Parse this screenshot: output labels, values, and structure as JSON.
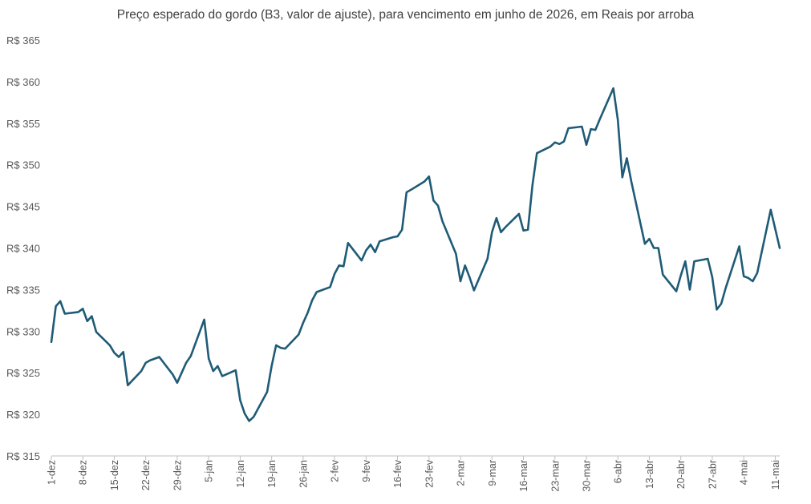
{
  "chart_data": {
    "type": "line",
    "title": "Preço esperado do gordo (B3, valor de ajuste), para vencimento em junho de 2026, em Reais por arroba",
    "xlabel": "",
    "ylabel": "",
    "ylim": [
      315,
      365
    ],
    "y_ticks": [
      "R$ 315",
      "R$ 320",
      "R$ 325",
      "R$ 330",
      "R$ 335",
      "R$ 340",
      "R$ 345",
      "R$ 350",
      "R$ 355",
      "R$ 360",
      "R$ 365"
    ],
    "x_ticks": [
      "1-dez",
      "8-dez",
      "15-dez",
      "22-dez",
      "29-dez",
      "5-jan",
      "12-jan",
      "19-jan",
      "26-jan",
      "2-fev",
      "9-fev",
      "16-fev",
      "23-fev",
      "2-mar",
      "9-mar",
      "16-mar",
      "23-mar",
      "30-mar",
      "6-abr",
      "13-abr",
      "20-abr",
      "27-abr",
      "4-mai",
      "11-mai"
    ],
    "grid": false,
    "legend": "none",
    "line_color": "#1f5b76",
    "series": [
      {
        "x": [
          0,
          1,
          2,
          3,
          6,
          7,
          8,
          9,
          10,
          13,
          14,
          15,
          16,
          17,
          20,
          21,
          22,
          23,
          24,
          27,
          28,
          29,
          30,
          31,
          34,
          35,
          36,
          37,
          38,
          41,
          42,
          43,
          44,
          45,
          48,
          49,
          50,
          51,
          52,
          55,
          56,
          57,
          58,
          59,
          62,
          63,
          64,
          65,
          66,
          69,
          70,
          71,
          72,
          73,
          76,
          77,
          78,
          79,
          80,
          83,
          84,
          85,
          86,
          87,
          90,
          91,
          92,
          93,
          94,
          97,
          98,
          99,
          100,
          101,
          104,
          105,
          106,
          107,
          108,
          111,
          112,
          113,
          114,
          115,
          118,
          119,
          120,
          121,
          122,
          125,
          126,
          127,
          128,
          129,
          132,
          133,
          134,
          135,
          136,
          139,
          140,
          141,
          142,
          143,
          146,
          147,
          148,
          149,
          150,
          153,
          154,
          155,
          156,
          157,
          160,
          161,
          162
        ],
        "values": [
          328.7,
          333.0,
          333.6,
          332.1,
          332.3,
          332.7,
          331.2,
          331.8,
          329.9,
          328.3,
          327.4,
          326.9,
          327.5,
          323.5,
          325.2,
          326.2,
          326.5,
          326.7,
          326.9,
          324.8,
          323.8,
          325.0,
          326.2,
          327.0,
          331.4,
          326.7,
          325.2,
          325.8,
          324.6,
          325.3,
          321.7,
          320.1,
          319.2,
          319.7,
          322.7,
          325.8,
          328.3,
          328.0,
          327.9,
          329.6,
          331.0,
          332.2,
          333.7,
          334.7,
          335.3,
          336.9,
          337.9,
          337.8,
          340.6,
          338.5,
          339.7,
          340.4,
          339.5,
          340.8,
          341.3,
          341.4,
          342.2,
          346.7,
          347.0,
          348.0,
          348.6,
          345.7,
          345.1,
          343.2,
          339.3,
          336.0,
          337.9,
          336.5,
          334.9,
          338.7,
          341.9,
          343.6,
          341.9,
          342.5,
          344.1,
          342.1,
          342.2,
          347.5,
          351.4,
          352.2,
          352.7,
          352.5,
          352.8,
          354.4,
          354.6,
          352.4,
          354.3,
          354.2,
          355.5,
          359.2,
          355.4,
          348.5,
          350.8,
          348.0,
          340.5,
          341.1,
          340.0,
          340.0,
          336.8,
          334.8,
          336.7,
          338.4,
          335.0,
          338.4,
          338.7,
          336.5,
          332.6,
          333.3,
          335.2,
          340.2,
          336.6,
          336.4,
          336.0,
          337.0,
          344.6,
          342.3,
          340.0
        ]
      }
    ]
  }
}
